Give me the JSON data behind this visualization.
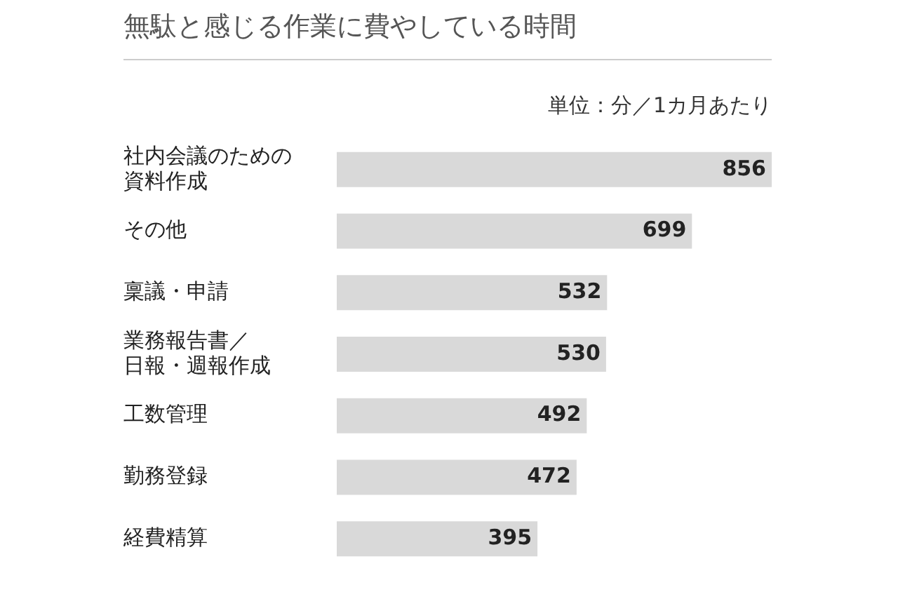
{
  "chart_data": {
    "type": "bar",
    "orientation": "horizontal",
    "title": "無駄と感じる作業に費やしている時間",
    "subtitle": "単位：分／1カ月あたり",
    "categories": [
      "社内会議のための資料作成",
      "その他",
      "稟議・申請",
      "業務報告書／日報・週報作成",
      "工数管理",
      "勤務登録",
      "経費精算"
    ],
    "values": [
      856,
      699,
      532,
      530,
      492,
      472,
      395
    ],
    "color": "#d9d9d9",
    "data_labels": true,
    "legend": false
  }
}
